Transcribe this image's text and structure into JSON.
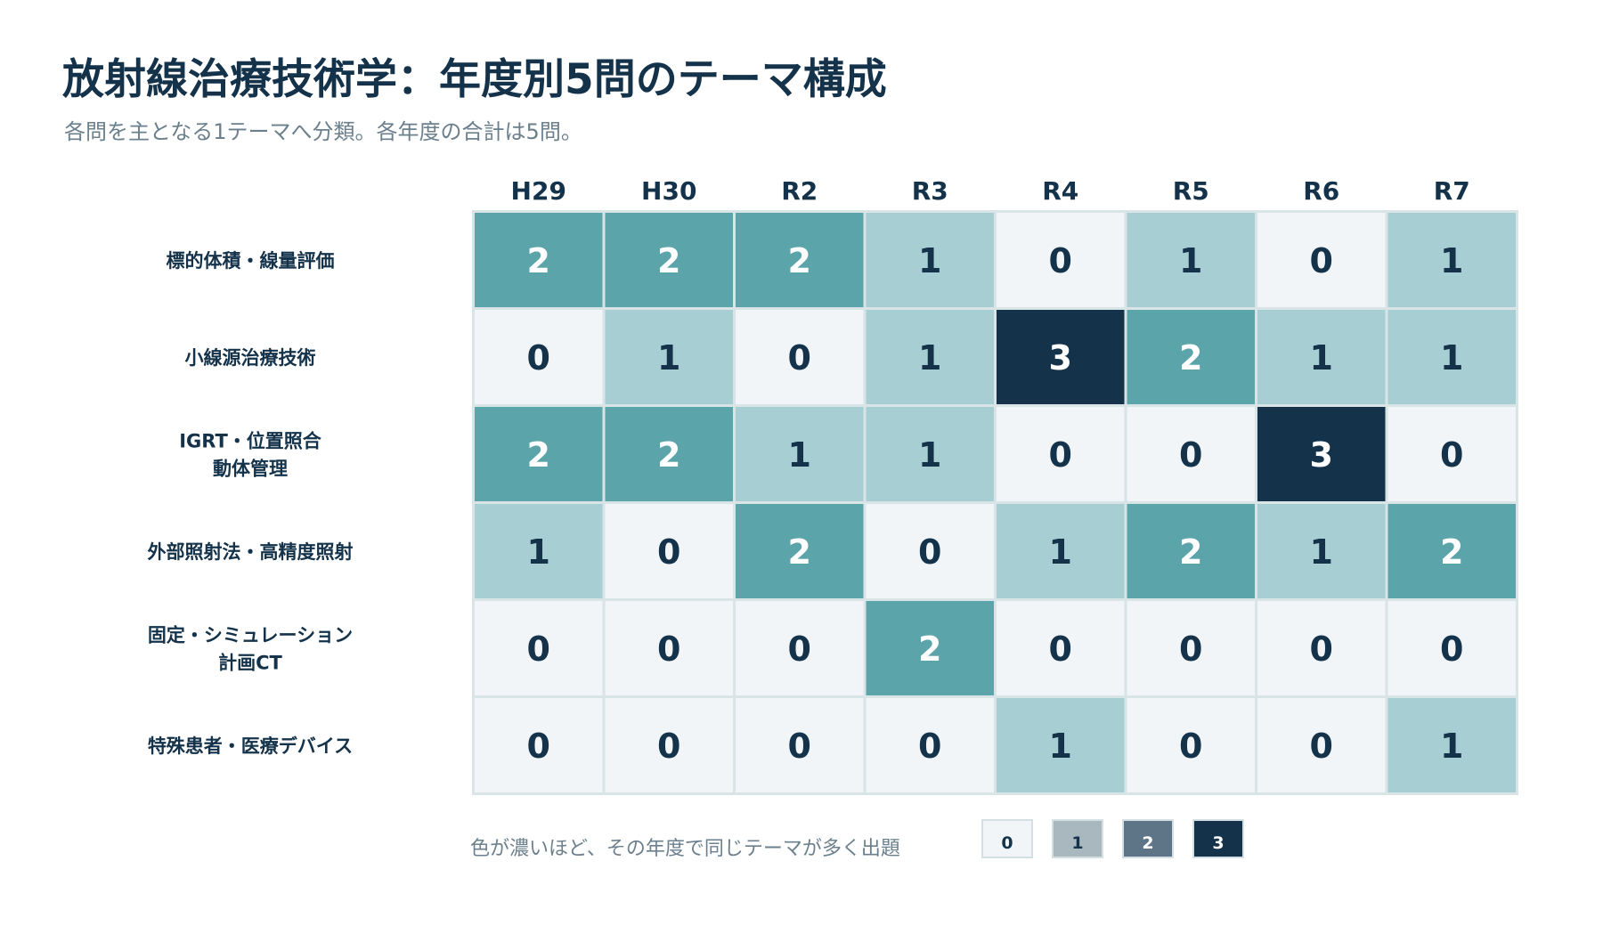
{
  "title": "放射線治療技術学：年度別5問のテーマ構成",
  "subtitle": "各問を主となる1テーマへ分類。各年度の合計は5問。",
  "legend": {
    "caption": "色が濃いほど、その年度で同じテーマが多く出題",
    "items": [
      {
        "label": "0",
        "color": "#f1f5f7",
        "text_color": "#14324a"
      },
      {
        "label": "1",
        "color": "#a9b7bf",
        "text_color": "#14324a"
      },
      {
        "label": "2",
        "color": "#5e7587",
        "text_color": "#ffffff"
      },
      {
        "label": "3",
        "color": "#14324a",
        "text_color": "#ffffff"
      }
    ]
  },
  "colors": {
    "0": "#f1f5f7",
    "1": "#a6ced3",
    "2": "#5aa4aa",
    "3": "#14324a",
    "grid_line": "#d9e4e7",
    "text_dark": "#14324a",
    "text_light": "#ffffff"
  },
  "chart_data": {
    "type": "heatmap",
    "title": "放射線治療技術学：年度別5問のテーマ構成",
    "subtitle": "各問を主となる1テーマへ分類。各年度の合計は5問。",
    "x": [
      "H29",
      "H30",
      "R2",
      "R3",
      "R4",
      "R5",
      "R6",
      "R7"
    ],
    "y": [
      [
        "標的体積・線量評価"
      ],
      [
        "小線源治療技術"
      ],
      [
        "IGRT・位置照合",
        "動体管理"
      ],
      [
        "外部照射法・高精度照射"
      ],
      [
        "固定・シミュレーション",
        "計画CT"
      ],
      [
        "特殊患者・医療デバイス"
      ]
    ],
    "values": [
      [
        2,
        2,
        2,
        1,
        0,
        1,
        0,
        1
      ],
      [
        0,
        1,
        0,
        1,
        3,
        2,
        1,
        1
      ],
      [
        2,
        2,
        1,
        1,
        0,
        0,
        3,
        0
      ],
      [
        1,
        0,
        2,
        0,
        1,
        2,
        1,
        2
      ],
      [
        0,
        0,
        0,
        2,
        0,
        0,
        0,
        0
      ],
      [
        0,
        0,
        0,
        0,
        1,
        0,
        0,
        1
      ]
    ],
    "value_range": [
      0,
      3
    ],
    "legend": "bottom"
  }
}
